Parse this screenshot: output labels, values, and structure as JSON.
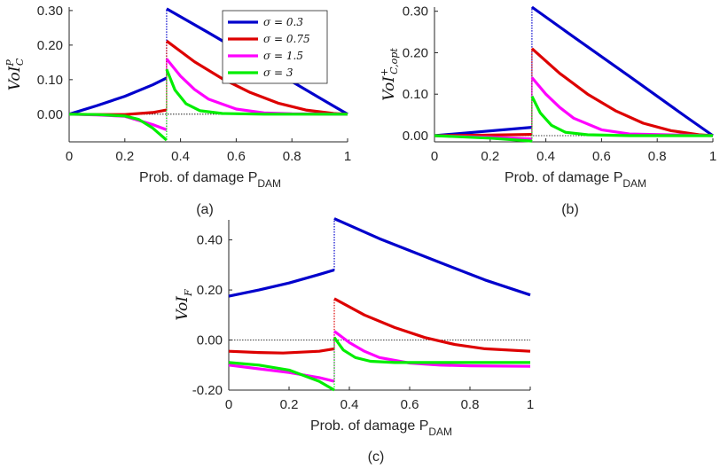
{
  "colors": {
    "sigma_0_3": "#0000cc",
    "sigma_0_75": "#dd0000",
    "sigma_1_5": "#ff00ff",
    "sigma_3": "#00ee00",
    "axis": "#262626"
  },
  "legend": {
    "entries": [
      "σ = 0.3",
      "σ = 0.75",
      "σ = 1.5",
      "σ = 3"
    ],
    "placement": "top-right of panel (a)"
  },
  "chart_data": [
    {
      "type": "line",
      "caption": "(a)",
      "ylabel_base": "VoI",
      "ylabel_sub": "C",
      "ylabel_sup": "P",
      "xlabel_main": "Prob. of damage P",
      "xlabel_sub": "DAM",
      "xlim": [
        0,
        1
      ],
      "ylim": [
        -0.08,
        0.31
      ],
      "xticks": [
        "0",
        "0.2",
        "0.4",
        "0.6",
        "0.8",
        "1"
      ],
      "xtick_values": [
        0,
        0.2,
        0.4,
        0.6,
        0.8,
        1
      ],
      "yticks": [
        "0.00",
        "0.10",
        "0.20",
        "0.30"
      ],
      "ytick_values": [
        0,
        0.1,
        0.2,
        0.3
      ],
      "discontinuity_x": 0.35,
      "zero_line": true,
      "series": [
        {
          "color_key": "sigma_0_3",
          "left": [
            [
              0,
              0
            ],
            [
              0.1,
              0.025
            ],
            [
              0.2,
              0.052
            ],
            [
              0.3,
              0.085
            ],
            [
              0.35,
              0.105
            ]
          ],
          "right": [
            [
              0.35,
              0.305
            ],
            [
              0.5,
              0.236
            ],
            [
              0.7,
              0.142
            ],
            [
              0.9,
              0.047
            ],
            [
              1.0,
              0
            ]
          ]
        },
        {
          "color_key": "sigma_0_75",
          "left": [
            [
              0,
              0
            ],
            [
              0.1,
              -0.001
            ],
            [
              0.2,
              -0.001
            ],
            [
              0.3,
              0.005
            ],
            [
              0.35,
              0.012
            ]
          ],
          "right": [
            [
              0.35,
              0.212
            ],
            [
              0.45,
              0.152
            ],
            [
              0.55,
              0.103
            ],
            [
              0.65,
              0.063
            ],
            [
              0.75,
              0.032
            ],
            [
              0.85,
              0.012
            ],
            [
              0.95,
              0.002
            ],
            [
              1.0,
              0
            ]
          ]
        },
        {
          "color_key": "sigma_1_5",
          "left": [
            [
              0,
              0
            ],
            [
              0.1,
              -0.002
            ],
            [
              0.2,
              -0.006
            ],
            [
              0.3,
              -0.03
            ],
            [
              0.35,
              -0.045
            ]
          ],
          "right": [
            [
              0.35,
              0.16
            ],
            [
              0.4,
              0.11
            ],
            [
              0.45,
              0.072
            ],
            [
              0.5,
              0.044
            ],
            [
              0.6,
              0.015
            ],
            [
              0.7,
              0.004
            ],
            [
              0.8,
              0.001
            ],
            [
              1.0,
              0
            ]
          ]
        },
        {
          "color_key": "sigma_3",
          "left": [
            [
              0,
              0
            ],
            [
              0.1,
              -0.001
            ],
            [
              0.2,
              -0.005
            ],
            [
              0.25,
              -0.015
            ],
            [
              0.3,
              -0.04
            ],
            [
              0.35,
              -0.075
            ]
          ],
          "right": [
            [
              0.35,
              0.13
            ],
            [
              0.38,
              0.07
            ],
            [
              0.42,
              0.03
            ],
            [
              0.47,
              0.01
            ],
            [
              0.55,
              0.002
            ],
            [
              0.7,
              0
            ],
            [
              1.0,
              0
            ]
          ]
        }
      ]
    },
    {
      "type": "line",
      "caption": "(b)",
      "ylabel_base": "VoI",
      "ylabel_sub": "C,opt",
      "ylabel_sup": "+",
      "xlabel_main": "Prob. of damage P",
      "xlabel_sub": "DAM",
      "xlim": [
        0,
        1
      ],
      "ylim": [
        -0.015,
        0.31
      ],
      "xticks": [
        "0",
        "0.2",
        "0.4",
        "0.6",
        "0.8",
        "1"
      ],
      "xtick_values": [
        0,
        0.2,
        0.4,
        0.6,
        0.8,
        1
      ],
      "yticks": [
        "0.00",
        "0.10",
        "0.20",
        "0.30"
      ],
      "ytick_values": [
        0,
        0.1,
        0.2,
        0.3
      ],
      "discontinuity_x": 0.35,
      "zero_line": true,
      "series": [
        {
          "color_key": "sigma_0_3",
          "left": [
            [
              0,
              0
            ],
            [
              0.175,
              0.01
            ],
            [
              0.35,
              0.02
            ]
          ],
          "right": [
            [
              0.35,
              0.31
            ],
            [
              0.5,
              0.238
            ],
            [
              0.7,
              0.143
            ],
            [
              0.9,
              0.047
            ],
            [
              1.0,
              0
            ]
          ]
        },
        {
          "color_key": "sigma_0_75",
          "left": [
            [
              0,
              0
            ],
            [
              0.175,
              0.001
            ],
            [
              0.35,
              0.003
            ]
          ],
          "right": [
            [
              0.35,
              0.21
            ],
            [
              0.45,
              0.15
            ],
            [
              0.55,
              0.1
            ],
            [
              0.65,
              0.06
            ],
            [
              0.75,
              0.03
            ],
            [
              0.85,
              0.012
            ],
            [
              0.95,
              0.002
            ],
            [
              1.0,
              0
            ]
          ]
        },
        {
          "color_key": "sigma_1_5",
          "left": [
            [
              0,
              0
            ],
            [
              0.2,
              -0.004
            ],
            [
              0.35,
              -0.008
            ]
          ],
          "right": [
            [
              0.35,
              0.14
            ],
            [
              0.4,
              0.1
            ],
            [
              0.45,
              0.068
            ],
            [
              0.5,
              0.042
            ],
            [
              0.6,
              0.014
            ],
            [
              0.7,
              0.004
            ],
            [
              1.0,
              0
            ]
          ]
        },
        {
          "color_key": "sigma_3",
          "left": [
            [
              0,
              0
            ],
            [
              0.2,
              -0.006
            ],
            [
              0.35,
              -0.013
            ]
          ],
          "right": [
            [
              0.35,
              0.095
            ],
            [
              0.38,
              0.055
            ],
            [
              0.42,
              0.025
            ],
            [
              0.47,
              0.008
            ],
            [
              0.55,
              0.002
            ],
            [
              0.7,
              0
            ],
            [
              1.0,
              0
            ]
          ]
        }
      ]
    },
    {
      "type": "line",
      "caption": "(c)",
      "ylabel_base": "VoI",
      "ylabel_sub": "F",
      "ylabel_sup": "",
      "xlabel_main": "Prob. of damage P",
      "xlabel_sub": "DAM",
      "xlim": [
        0,
        1
      ],
      "ylim": [
        -0.2,
        0.48
      ],
      "xticks": [
        "0",
        "0.2",
        "0.4",
        "0.6",
        "0.8",
        "1"
      ],
      "xtick_values": [
        0,
        0.2,
        0.4,
        0.6,
        0.8,
        1
      ],
      "yticks": [
        "-0.20",
        "0.00",
        "0.20",
        "0.40"
      ],
      "ytick_values": [
        -0.2,
        0,
        0.2,
        0.4
      ],
      "discontinuity_x": 0.35,
      "zero_line": true,
      "series": [
        {
          "color_key": "sigma_0_3",
          "left": [
            [
              0,
              0.175
            ],
            [
              0.1,
              0.2
            ],
            [
              0.2,
              0.228
            ],
            [
              0.3,
              0.262
            ],
            [
              0.35,
              0.28
            ]
          ],
          "right": [
            [
              0.35,
              0.485
            ],
            [
              0.5,
              0.405
            ],
            [
              0.7,
              0.31
            ],
            [
              0.85,
              0.24
            ],
            [
              1.0,
              0.18
            ]
          ]
        },
        {
          "color_key": "sigma_0_75",
          "left": [
            [
              0,
              -0.045
            ],
            [
              0.1,
              -0.05
            ],
            [
              0.18,
              -0.052
            ],
            [
              0.3,
              -0.045
            ],
            [
              0.35,
              -0.035
            ]
          ],
          "right": [
            [
              0.35,
              0.165
            ],
            [
              0.45,
              0.1
            ],
            [
              0.55,
              0.05
            ],
            [
              0.65,
              0.01
            ],
            [
              0.75,
              -0.018
            ],
            [
              0.85,
              -0.035
            ],
            [
              1.0,
              -0.045
            ]
          ]
        },
        {
          "color_key": "sigma_1_5",
          "left": [
            [
              0,
              -0.1
            ],
            [
              0.1,
              -0.115
            ],
            [
              0.2,
              -0.13
            ],
            [
              0.3,
              -0.15
            ],
            [
              0.35,
              -0.165
            ]
          ],
          "right": [
            [
              0.35,
              0.035
            ],
            [
              0.4,
              -0.01
            ],
            [
              0.45,
              -0.045
            ],
            [
              0.5,
              -0.07
            ],
            [
              0.6,
              -0.092
            ],
            [
              0.7,
              -0.1
            ],
            [
              0.8,
              -0.103
            ],
            [
              1.0,
              -0.105
            ]
          ]
        },
        {
          "color_key": "sigma_3",
          "left": [
            [
              0,
              -0.09
            ],
            [
              0.1,
              -0.1
            ],
            [
              0.2,
              -0.12
            ],
            [
              0.3,
              -0.165
            ],
            [
              0.35,
              -0.2
            ]
          ],
          "right": [
            [
              0.35,
              0.01
            ],
            [
              0.38,
              -0.04
            ],
            [
              0.42,
              -0.07
            ],
            [
              0.47,
              -0.085
            ],
            [
              0.55,
              -0.09
            ],
            [
              0.7,
              -0.09
            ],
            [
              1.0,
              -0.09
            ]
          ]
        }
      ]
    }
  ]
}
